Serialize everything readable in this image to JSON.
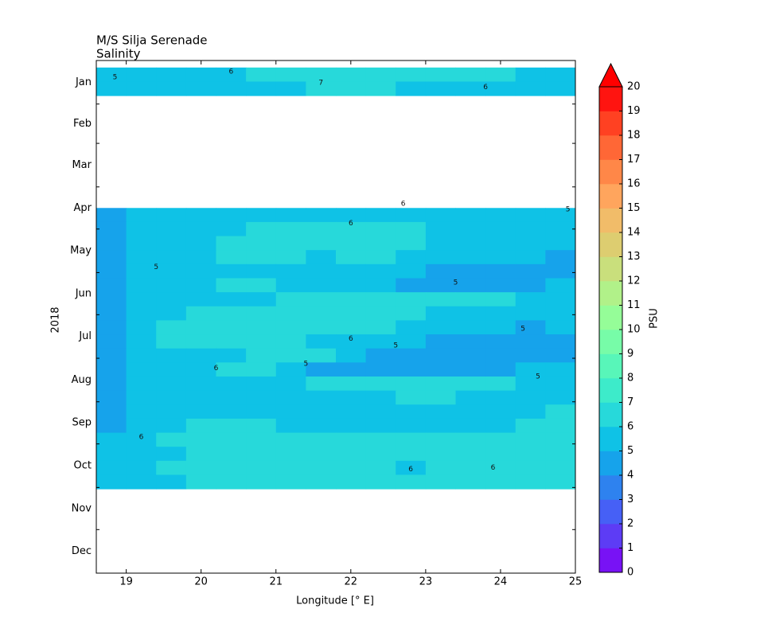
{
  "chart_data": {
    "type": "contour",
    "title": "M/S Silja Serenade",
    "subtitle": "Salinity",
    "x_label": "Longitude [° E]",
    "y_label": "2018",
    "colorbar_label": "PSU",
    "xlim": [
      18.6,
      25.0
    ],
    "xticks": [
      19,
      20,
      21,
      22,
      23,
      24,
      25
    ],
    "ylim": [
      0,
      365
    ],
    "y_inverted": true,
    "yticks": [
      {
        "value": 15.5,
        "label": "Jan"
      },
      {
        "value": 45,
        "label": "Feb"
      },
      {
        "value": 74.5,
        "label": "Mar"
      },
      {
        "value": 105,
        "label": "Apr"
      },
      {
        "value": 135.5,
        "label": "May"
      },
      {
        "value": 166,
        "label": "Jun"
      },
      {
        "value": 196.5,
        "label": "Jul"
      },
      {
        "value": 227.5,
        "label": "Aug"
      },
      {
        "value": 258,
        "label": "Sep"
      },
      {
        "value": 288.5,
        "label": "Oct"
      },
      {
        "value": 319,
        "label": "Nov"
      },
      {
        "value": 349.5,
        "label": "Dec"
      }
    ],
    "yminorticks": [
      31,
      59,
      90,
      120,
      151,
      181,
      212,
      243,
      273,
      304,
      334
    ],
    "levels": [
      0,
      1,
      2,
      3,
      4,
      5,
      6,
      7,
      8,
      9,
      10,
      11,
      12,
      13,
      14,
      15,
      16,
      17,
      18,
      19,
      20
    ],
    "colors": [
      "#7812f5",
      "#5d3cf5",
      "#4660f6",
      "#2e82ef",
      "#16a3eb",
      "#0fc2e6",
      "#27d9da",
      "#3debca",
      "#58f6b9",
      "#77fca8",
      "#95fd98",
      "#b1f189",
      "#c9df7c",
      "#ddcd70",
      "#f1bc69",
      "#ffa55d",
      "#ff8748",
      "#ff6736",
      "#ff4122",
      "#ff1410"
    ],
    "extend_color": "#ff0000",
    "x": [
      18.8,
      19.2,
      19.6,
      20.0,
      20.4,
      20.8,
      21.2,
      21.6,
      22.0,
      22.4,
      22.8,
      23.2,
      23.6,
      24.0,
      24.4,
      24.8
    ],
    "y": [
      10,
      20,
      30,
      40,
      50,
      60,
      70,
      80,
      90,
      100,
      110,
      120,
      130,
      140,
      150,
      160,
      170,
      180,
      190,
      200,
      210,
      220,
      230,
      240,
      250,
      260,
      270,
      280,
      290,
      300
    ],
    "z": [
      [
        5.5,
        5.5,
        5.5,
        5.5,
        5.5,
        6.5,
        6.5,
        6.5,
        6.5,
        6.5,
        6.5,
        6.5,
        6.5,
        6.5,
        5.5,
        5.5
      ],
      [
        5.5,
        5.5,
        5.5,
        5.5,
        5.5,
        5.5,
        5.5,
        6.5,
        6.5,
        6.5,
        5.5,
        5.5,
        5.5,
        5.5,
        5.5,
        5.5
      ],
      [
        null,
        null,
        null,
        null,
        null,
        null,
        null,
        null,
        null,
        null,
        null,
        null,
        null,
        null,
        null,
        null
      ],
      [
        null,
        null,
        null,
        null,
        null,
        null,
        null,
        null,
        null,
        null,
        null,
        null,
        null,
        null,
        null,
        null
      ],
      [
        null,
        null,
        null,
        null,
        null,
        null,
        null,
        null,
        null,
        null,
        null,
        null,
        null,
        null,
        null,
        null
      ],
      [
        null,
        null,
        null,
        null,
        null,
        null,
        null,
        null,
        null,
        null,
        null,
        null,
        null,
        null,
        null,
        null
      ],
      [
        null,
        null,
        null,
        null,
        null,
        null,
        null,
        null,
        null,
        null,
        null,
        null,
        null,
        null,
        null,
        null
      ],
      [
        null,
        null,
        null,
        null,
        null,
        null,
        null,
        null,
        null,
        null,
        null,
        null,
        null,
        null,
        null,
        null
      ],
      [
        null,
        null,
        null,
        null,
        null,
        null,
        null,
        null,
        null,
        null,
        null,
        null,
        null,
        null,
        null,
        null
      ],
      [
        null,
        null,
        null,
        null,
        null,
        null,
        null,
        null,
        null,
        null,
        null,
        null,
        null,
        null,
        null,
        null
      ],
      [
        4.5,
        5.5,
        5.5,
        5.5,
        5.5,
        5.5,
        5.5,
        5.5,
        5.5,
        5.5,
        5.5,
        5.5,
        5.5,
        5.5,
        5.5,
        5.5
      ],
      [
        4.5,
        5.5,
        5.5,
        5.5,
        5.5,
        6.5,
        6.5,
        6.5,
        6.5,
        6.5,
        6.5,
        5.5,
        5.5,
        5.5,
        5.5,
        5.5
      ],
      [
        4.5,
        5.5,
        5.5,
        5.5,
        6.5,
        6.5,
        6.5,
        6.5,
        6.5,
        6.5,
        6.5,
        5.5,
        5.5,
        5.5,
        5.5,
        5.5
      ],
      [
        4.5,
        5.5,
        5.5,
        5.5,
        6.5,
        6.5,
        6.5,
        5.5,
        6.5,
        6.5,
        5.5,
        5.5,
        5.5,
        5.5,
        5.5,
        4.5
      ],
      [
        4.5,
        5.5,
        5.5,
        5.5,
        5.5,
        5.5,
        5.5,
        5.5,
        5.5,
        5.5,
        5.5,
        4.5,
        4.5,
        4.5,
        4.5,
        4.5
      ],
      [
        4.5,
        5.5,
        5.5,
        5.5,
        6.5,
        6.5,
        5.5,
        5.5,
        5.5,
        5.5,
        4.5,
        4.5,
        4.5,
        4.5,
        4.5,
        5.5
      ],
      [
        4.5,
        5.5,
        5.5,
        5.5,
        5.5,
        5.5,
        6.5,
        6.5,
        6.5,
        6.5,
        6.5,
        6.5,
        6.5,
        6.5,
        5.5,
        5.5
      ],
      [
        4.5,
        5.5,
        5.5,
        6.5,
        6.5,
        6.5,
        6.5,
        6.5,
        6.5,
        6.5,
        6.5,
        5.5,
        5.5,
        5.5,
        5.5,
        5.5
      ],
      [
        4.5,
        5.5,
        6.5,
        6.5,
        6.5,
        6.5,
        6.5,
        6.5,
        6.5,
        6.5,
        5.5,
        5.5,
        5.5,
        5.5,
        4.5,
        5.5
      ],
      [
        4.5,
        5.5,
        6.5,
        6.5,
        6.5,
        6.5,
        6.5,
        5.5,
        5.5,
        5.5,
        5.5,
        4.5,
        4.5,
        4.5,
        4.5,
        4.5
      ],
      [
        4.5,
        5.5,
        5.5,
        5.5,
        5.5,
        6.5,
        6.5,
        6.5,
        5.5,
        4.5,
        4.5,
        4.5,
        4.5,
        4.5,
        4.5,
        4.5
      ],
      [
        4.5,
        5.5,
        5.5,
        5.5,
        6.5,
        6.5,
        5.5,
        4.5,
        4.5,
        4.5,
        4.5,
        4.5,
        4.5,
        4.5,
        5.5,
        5.5
      ],
      [
        4.5,
        5.5,
        5.5,
        5.5,
        5.5,
        5.5,
        5.5,
        6.5,
        6.5,
        6.5,
        6.5,
        6.5,
        6.5,
        6.5,
        5.5,
        5.5
      ],
      [
        4.5,
        5.5,
        5.5,
        5.5,
        5.5,
        5.5,
        5.5,
        5.5,
        5.5,
        5.5,
        6.5,
        6.5,
        5.5,
        5.5,
        5.5,
        5.5
      ],
      [
        4.5,
        5.5,
        5.5,
        5.5,
        5.5,
        5.5,
        5.5,
        5.5,
        5.5,
        5.5,
        5.5,
        5.5,
        5.5,
        5.5,
        5.5,
        6.5
      ],
      [
        4.5,
        5.5,
        5.5,
        6.5,
        6.5,
        6.5,
        5.5,
        5.5,
        5.5,
        5.5,
        5.5,
        5.5,
        5.5,
        5.5,
        6.5,
        6.5
      ],
      [
        5.5,
        5.5,
        6.5,
        6.5,
        6.5,
        6.5,
        6.5,
        6.5,
        6.5,
        6.5,
        6.5,
        6.5,
        6.5,
        6.5,
        6.5,
        6.5
      ],
      [
        5.5,
        5.5,
        5.5,
        6.5,
        6.5,
        6.5,
        6.5,
        6.5,
        6.5,
        6.5,
        6.5,
        6.5,
        6.5,
        6.5,
        6.5,
        6.5
      ],
      [
        5.5,
        5.5,
        6.5,
        6.5,
        6.5,
        6.5,
        6.5,
        6.5,
        6.5,
        6.5,
        5.5,
        6.5,
        6.5,
        6.5,
        6.5,
        6.5
      ],
      [
        5.5,
        5.5,
        5.5,
        6.5,
        6.5,
        6.5,
        6.5,
        6.5,
        6.5,
        6.5,
        6.5,
        6.5,
        6.5,
        6.5,
        6.5,
        6.5
      ]
    ],
    "contour_labels": [
      {
        "x": 18.85,
        "y": 12,
        "level": 5
      },
      {
        "x": 20.4,
        "y": 8,
        "level": 6
      },
      {
        "x": 21.6,
        "y": 16,
        "level": 7
      },
      {
        "x": 23.8,
        "y": 19,
        "level": 6
      },
      {
        "x": 24.9,
        "y": 106,
        "level": 5
      },
      {
        "x": 22.7,
        "y": 102,
        "level": 6
      },
      {
        "x": 22.0,
        "y": 116,
        "level": 6
      },
      {
        "x": 19.4,
        "y": 147,
        "level": 5
      },
      {
        "x": 23.4,
        "y": 158,
        "level": 5
      },
      {
        "x": 24.3,
        "y": 191,
        "level": 5
      },
      {
        "x": 22.6,
        "y": 203,
        "level": 5
      },
      {
        "x": 21.4,
        "y": 216,
        "level": 5
      },
      {
        "x": 20.2,
        "y": 219,
        "level": 6
      },
      {
        "x": 24.5,
        "y": 225,
        "level": 5
      },
      {
        "x": 19.2,
        "y": 268,
        "level": 6
      },
      {
        "x": 22.8,
        "y": 291,
        "level": 6
      },
      {
        "x": 23.9,
        "y": 290,
        "level": 6
      },
      {
        "x": 22.0,
        "y": 198,
        "level": 6
      }
    ]
  }
}
